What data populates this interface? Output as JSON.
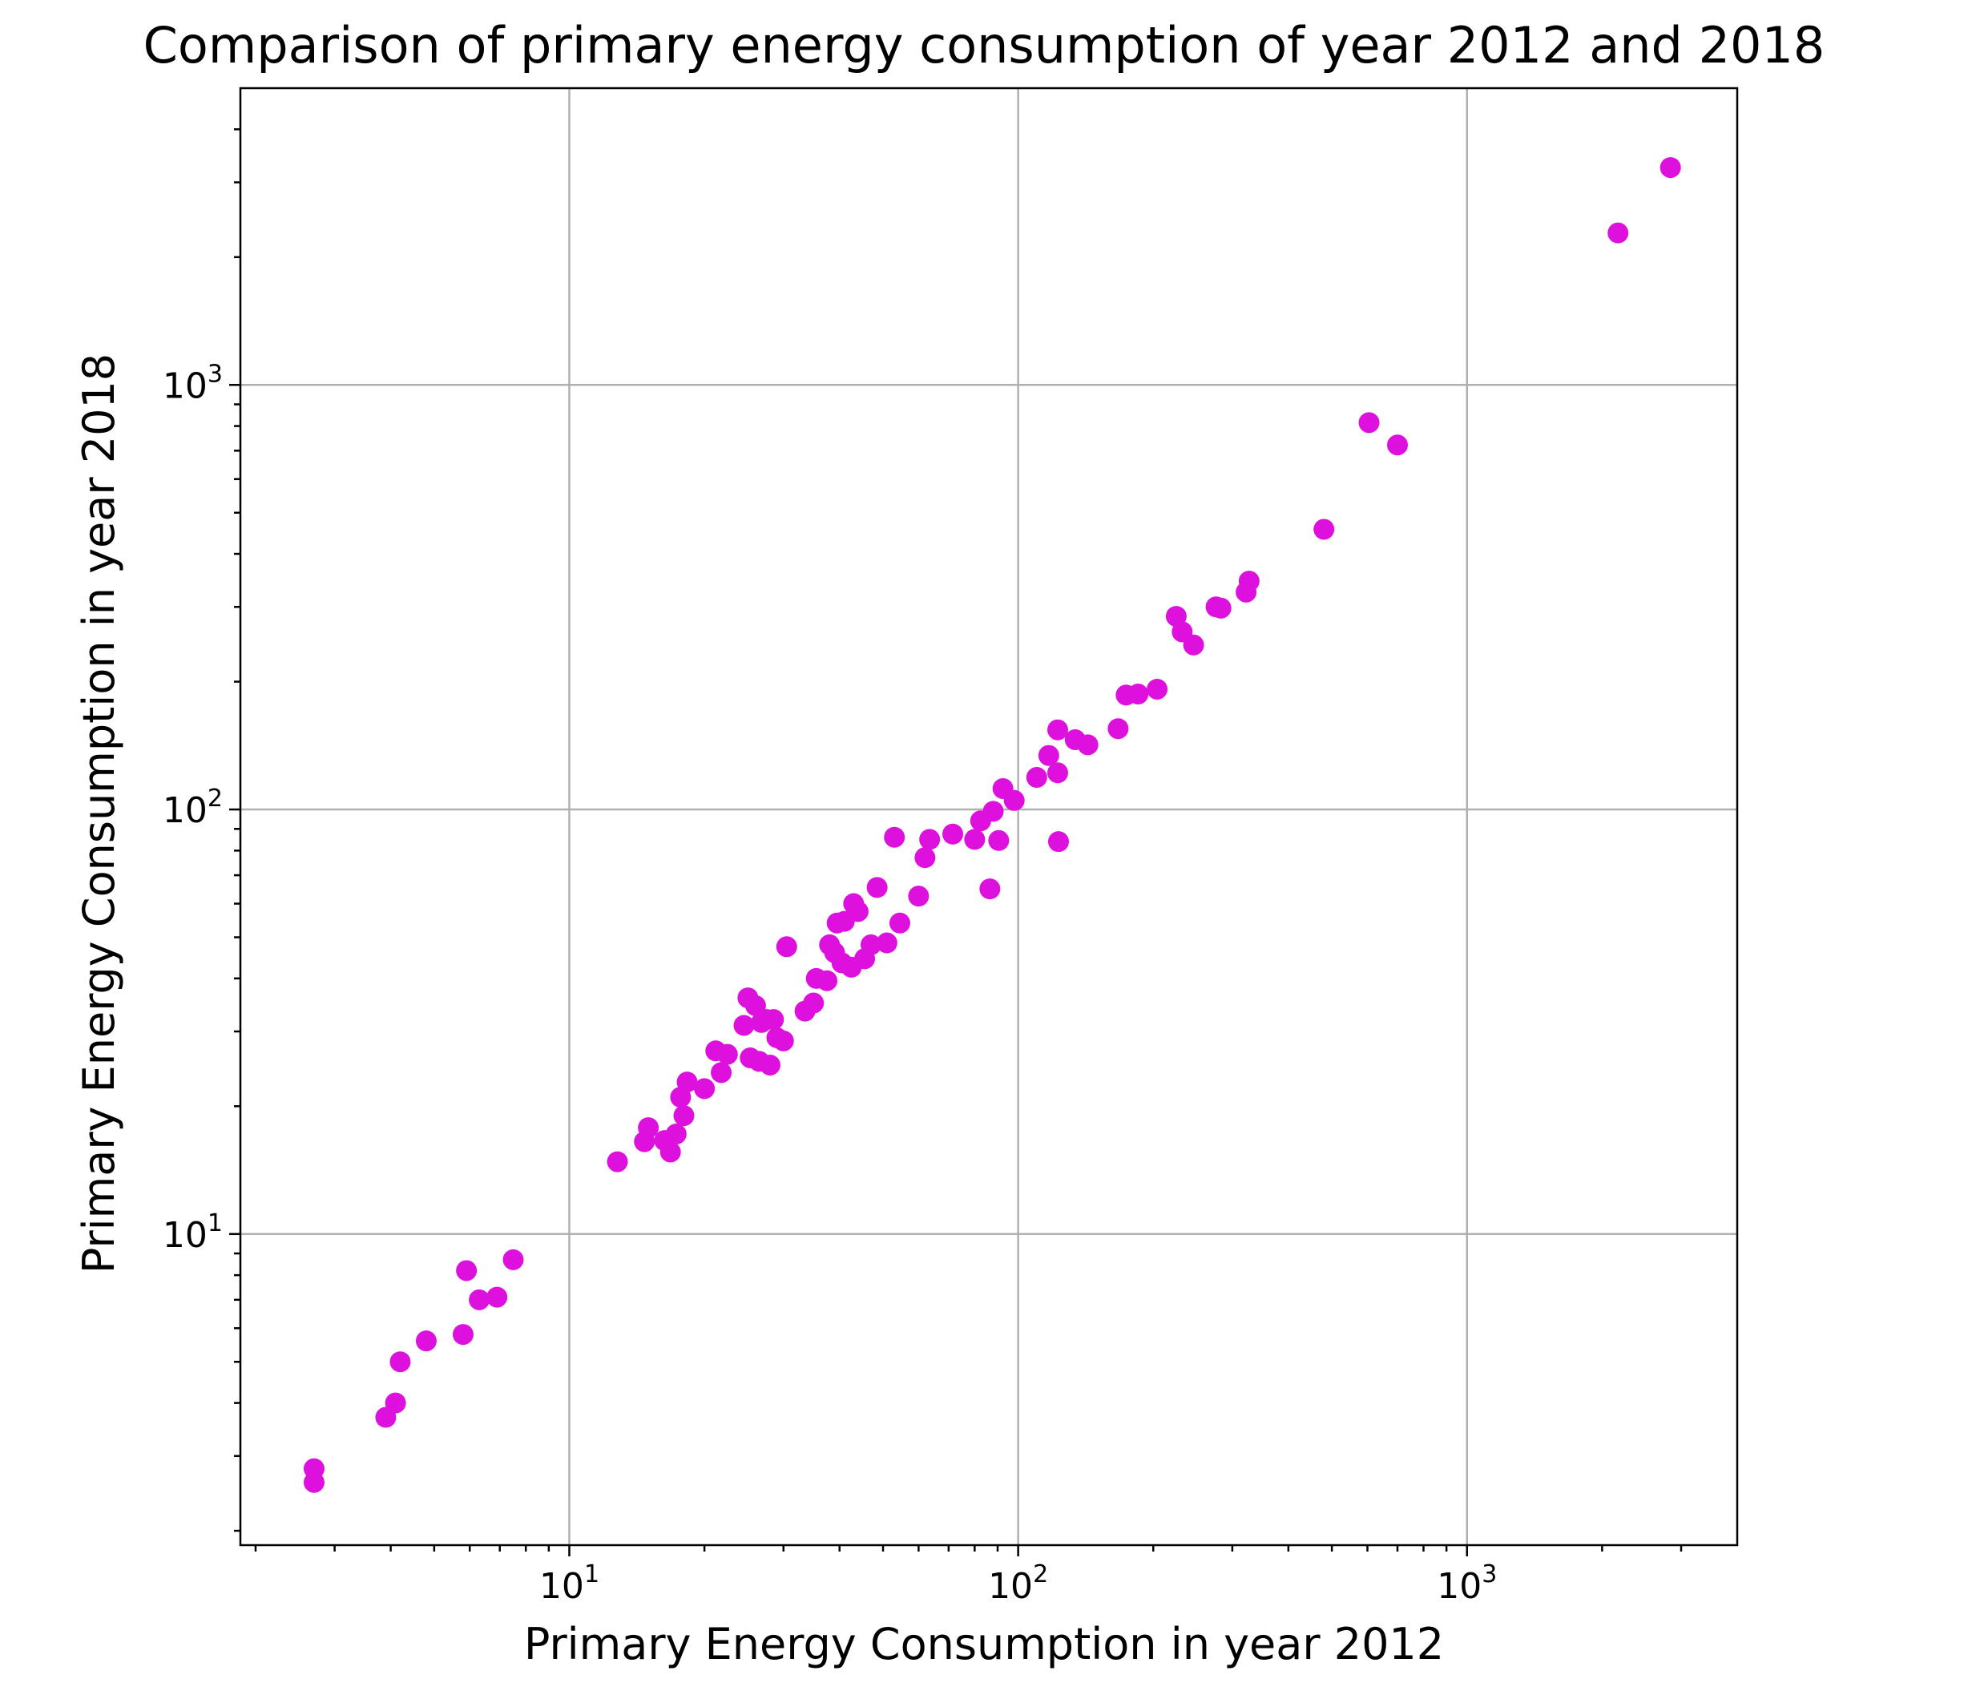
{
  "chart_data": {
    "type": "scatter",
    "title": "Comparison of primary energy consumption of year 2012 and 2018",
    "xlabel": "Primary Energy Consumption in year 2012",
    "ylabel": "Primary Energy Consumption in year 2018",
    "xscale": "log",
    "yscale": "log",
    "xlim": [
      1.85,
      4000
    ],
    "ylim": [
      1.85,
      5000
    ],
    "xticks": [
      {
        "value": 10,
        "base": "10",
        "exp": "1"
      },
      {
        "value": 100,
        "base": "10",
        "exp": "2"
      },
      {
        "value": 1000,
        "base": "10",
        "exp": "3"
      }
    ],
    "yticks": [
      {
        "value": 10,
        "base": "10",
        "exp": "1"
      },
      {
        "value": 100,
        "base": "10",
        "exp": "2"
      },
      {
        "value": 1000,
        "base": "10",
        "exp": "3"
      }
    ],
    "grid": true,
    "marker_color": "#dd10dd",
    "points": [
      [
        2.7,
        2.8
      ],
      [
        2.7,
        2.6
      ],
      [
        3.9,
        3.7
      ],
      [
        4.1,
        4.0
      ],
      [
        4.2,
        5.0
      ],
      [
        4.8,
        5.6
      ],
      [
        5.8,
        5.8
      ],
      [
        5.9,
        8.2
      ],
      [
        6.3,
        7.0
      ],
      [
        6.9,
        7.1
      ],
      [
        7.5,
        8.7
      ],
      [
        12.8,
        14.8
      ],
      [
        14.7,
        16.5
      ],
      [
        15.0,
        17.8
      ],
      [
        16.3,
        16.6
      ],
      [
        16.8,
        15.6
      ],
      [
        17.3,
        17.2
      ],
      [
        17.7,
        21.0
      ],
      [
        18.0,
        19.0
      ],
      [
        18.3,
        22.8
      ],
      [
        20.0,
        22.0
      ],
      [
        21.2,
        27.0
      ],
      [
        21.8,
        24.0
      ],
      [
        22.5,
        26.5
      ],
      [
        24.5,
        31.0
      ],
      [
        25.0,
        36.0
      ],
      [
        25.3,
        26.0
      ],
      [
        26.0,
        34.5
      ],
      [
        26.5,
        25.5
      ],
      [
        26.8,
        31.5
      ],
      [
        27.5,
        32.0
      ],
      [
        28.0,
        25.0
      ],
      [
        28.5,
        32.0
      ],
      [
        29.0,
        29.0
      ],
      [
        30.0,
        28.5
      ],
      [
        30.5,
        47.5
      ],
      [
        33.5,
        33.5
      ],
      [
        35.0,
        35.0
      ],
      [
        35.5,
        40.0
      ],
      [
        37.5,
        39.5
      ],
      [
        38.0,
        48.0
      ],
      [
        39.0,
        46.0
      ],
      [
        39.5,
        54.0
      ],
      [
        40.5,
        43.5
      ],
      [
        41.0,
        54.5
      ],
      [
        42.5,
        42.5
      ],
      [
        43.0,
        60.0
      ],
      [
        44.0,
        57.5
      ],
      [
        45.5,
        44.5
      ],
      [
        47.0,
        48.0
      ],
      [
        48.5,
        65.5
      ],
      [
        51.0,
        48.5
      ],
      [
        53.0,
        86.0
      ],
      [
        54.5,
        54.0
      ],
      [
        60.0,
        62.5
      ],
      [
        62.0,
        77.0
      ],
      [
        63.5,
        85.0
      ],
      [
        71.5,
        87.5
      ],
      [
        80.0,
        85.0
      ],
      [
        82.5,
        94.0
      ],
      [
        86.5,
        65.0
      ],
      [
        88.0,
        99.0
      ],
      [
        90.5,
        84.5
      ],
      [
        92.5,
        112.0
      ],
      [
        98.0,
        105.0
      ],
      [
        110.0,
        119.0
      ],
      [
        117.0,
        134.0
      ],
      [
        122.5,
        154.0
      ],
      [
        122.5,
        122.0
      ],
      [
        123.0,
        84.0
      ],
      [
        134.0,
        146.0
      ],
      [
        143.0,
        142.0
      ],
      [
        167.0,
        155.0
      ],
      [
        174.0,
        186.0
      ],
      [
        185.0,
        187.0
      ],
      [
        204.0,
        192.0
      ],
      [
        225.0,
        285.0
      ],
      [
        232.0,
        262.0
      ],
      [
        246.0,
        244.0
      ],
      [
        276.0,
        300.0
      ],
      [
        283.0,
        298.0
      ],
      [
        322.0,
        325.0
      ],
      [
        327.0,
        345.0
      ],
      [
        480.0,
        457.0
      ],
      [
        605.0,
        815.0
      ],
      [
        700.0,
        722.0
      ],
      [
        2170.0,
        2280.0
      ],
      [
        2840.0,
        3250.0
      ]
    ]
  }
}
